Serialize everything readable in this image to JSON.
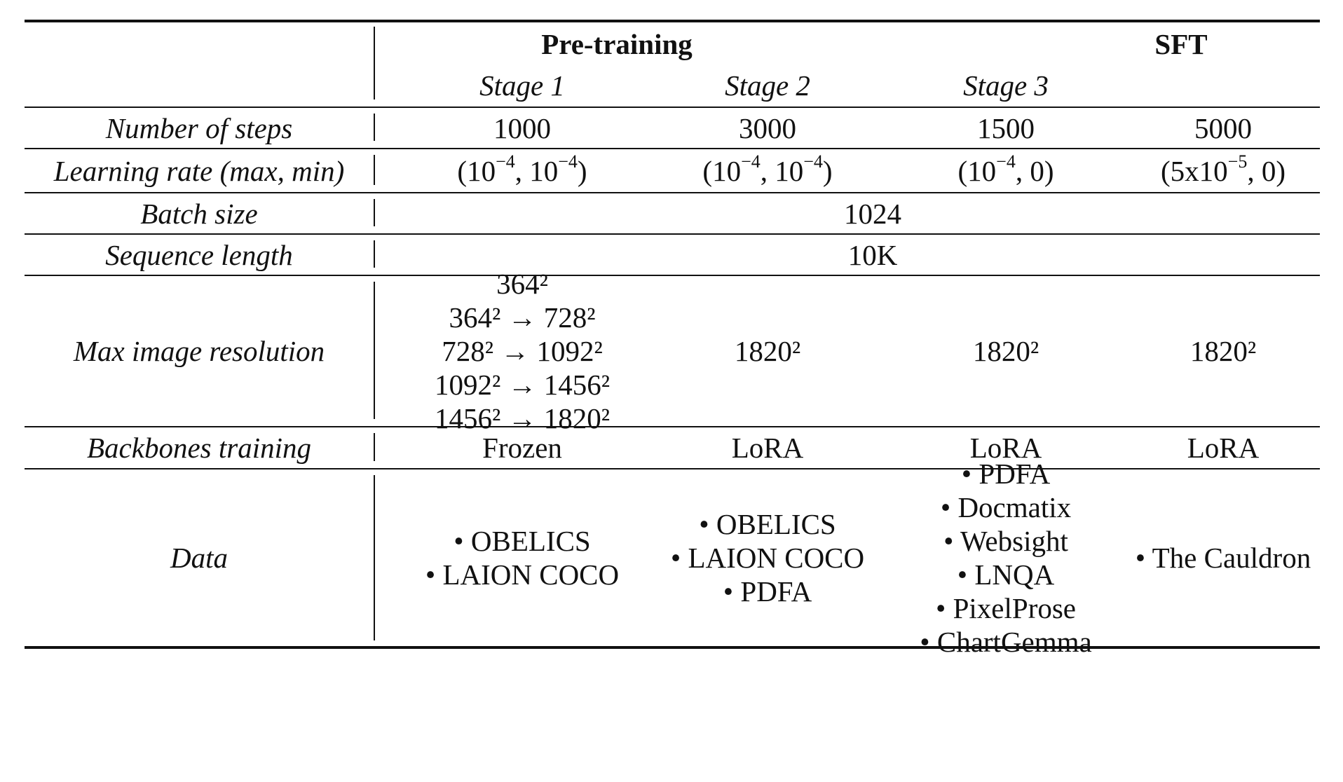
{
  "header": {
    "group_pretraining": "Pre-training",
    "group_sft": "SFT",
    "stage1": "Stage 1",
    "stage2": "Stage 2",
    "stage3": "Stage 3"
  },
  "rows": {
    "steps": {
      "label": "Number of steps",
      "stage1": "1000",
      "stage2": "3000",
      "stage3": "1500",
      "sft": "5000"
    },
    "lr": {
      "label": "Learning rate (max, min)",
      "stage1": {
        "open": "(10",
        "exp1": "−4",
        "mid": ", 10",
        "exp2": "−4",
        "close": ")"
      },
      "stage2": {
        "open": "(10",
        "exp1": "−4",
        "mid": ", 10",
        "exp2": "−4",
        "close": ")"
      },
      "stage3": {
        "open": "(10",
        "exp1": "−4",
        "close": ", 0)"
      },
      "sft": {
        "open": "(5x10",
        "exp1": "−5",
        "close": ", 0)"
      }
    },
    "batch": {
      "label": "Batch size",
      "value": "1024"
    },
    "seq": {
      "label": "Sequence length",
      "value": "10K"
    },
    "res": {
      "label": "Max image resolution",
      "stage1": [
        "364²",
        "364² → 728²",
        "728² → 1092²",
        "1092² → 1456²",
        "1456² → 1820²"
      ],
      "stage2": "1820²",
      "stage3": "1820²",
      "sft": "1820²"
    },
    "backbone": {
      "label": "Backbones training",
      "stage1": "Frozen",
      "stage2": "LoRA",
      "stage3": "LoRA",
      "sft": "LoRA"
    },
    "data": {
      "label": "Data",
      "stage1": [
        "• OBELICS",
        "• LAION COCO"
      ],
      "stage2": [
        "• OBELICS",
        "• LAION COCO",
        "• PDFA"
      ],
      "stage3": [
        "• PDFA",
        "• Docmatix",
        "• Websight",
        "• LNQA",
        "• PixelProse",
        "• ChartGemma"
      ],
      "sft": [
        "• The Cauldron"
      ]
    }
  }
}
